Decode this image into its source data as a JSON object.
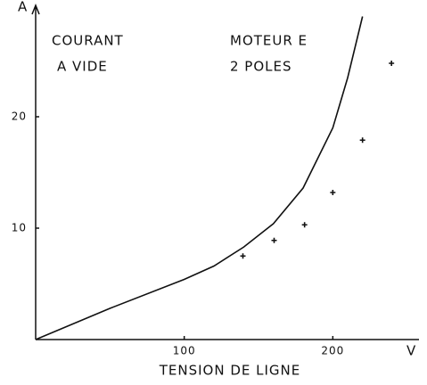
{
  "chart_data": {
    "type": "line",
    "x_label": "TENSION DE LIGNE",
    "x_unit": "V",
    "y_unit": "A",
    "annotations": [
      "COURANT",
      "A VIDE",
      "MOTEUR E",
      "2 POLES"
    ],
    "xlim": [
      0,
      258
    ],
    "ylim": [
      0,
      30
    ],
    "xticks": [
      100,
      200
    ],
    "yticks": [
      10,
      20
    ],
    "series": [
      {
        "mode": "line",
        "color": "#111111",
        "x": [
          0,
          50,
          100,
          120,
          140,
          160,
          180,
          200,
          210,
          220
        ],
        "values": [
          0,
          2.8,
          5.4,
          6.6,
          8.3,
          10.4,
          13.6,
          19.0,
          23.5,
          29.0
        ]
      },
      {
        "mode": "markers",
        "color": "#111111",
        "x": [
          139.5,
          160.5,
          181,
          200,
          220,
          239.5
        ],
        "values": [
          7.5,
          8.9,
          10.3,
          13.2,
          17.9,
          24.8
        ]
      }
    ]
  }
}
